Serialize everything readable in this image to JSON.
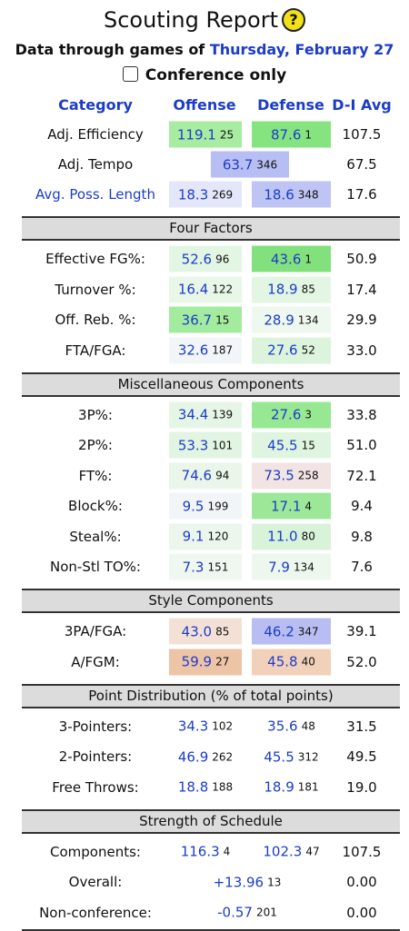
{
  "header": {
    "title": "Scouting Report",
    "help_icon": "?",
    "subtitle": "Data through games of",
    "date": "Thursday, February 27",
    "filter_label": "Conference only"
  },
  "table": {
    "columns": [
      "Category",
      "Offense",
      "Defense",
      "D-I Avg"
    ],
    "summary_rows": [
      {
        "label": "Adj. Efficiency",
        "offense": {
          "value": "119.1",
          "rank": "25",
          "color": "#a8eca2"
        },
        "defense": {
          "value": "87.6",
          "rank": "1",
          "color": "#86e480"
        },
        "average": "107.5"
      },
      {
        "label": "Adj. Tempo",
        "combined": {
          "value": "63.7",
          "rank": "346",
          "color": "#b7bef3"
        },
        "average": "67.5"
      },
      {
        "label": "Avg. Poss. Length",
        "link": true,
        "offense": {
          "value": "18.3",
          "rank": "269",
          "color": "#e4e7fa"
        },
        "defense": {
          "value": "18.6",
          "rank": "348",
          "color": "#bec4f4"
        },
        "average": "17.6"
      }
    ],
    "sections": [
      {
        "title": "Four Factors",
        "rows": [
          {
            "label": "Effective FG%:",
            "offense": {
              "value": "52.6",
              "rank": "96",
              "color": "#e3f6e3"
            },
            "defense": {
              "value": "43.6",
              "rank": "1",
              "color": "#82e17c"
            },
            "average": "50.9"
          },
          {
            "label": "Turnover %:",
            "offense": {
              "value": "16.4",
              "rank": "122",
              "color": "#e9f7e9"
            },
            "defense": {
              "value": "18.9",
              "rank": "85",
              "color": "#e3f6e3"
            },
            "average": "17.4"
          },
          {
            "label": "Off. Reb. %:",
            "offense": {
              "value": "36.7",
              "rank": "15",
              "color": "#a3eb9e"
            },
            "defense": {
              "value": "28.9",
              "rank": "134",
              "color": "#eef8ee"
            },
            "average": "29.9"
          },
          {
            "label": "FTA/FGA:",
            "offense": {
              "value": "32.6",
              "rank": "187",
              "color": "#f3f6f8"
            },
            "defense": {
              "value": "27.6",
              "rank": "52",
              "color": "#dcf4dc"
            },
            "average": "33.0"
          }
        ]
      },
      {
        "title": "Miscellaneous Components",
        "rows": [
          {
            "label": "3P%:",
            "offense": {
              "value": "34.4",
              "rank": "139",
              "color": "#e6f6e6"
            },
            "defense": {
              "value": "27.6",
              "rank": "3",
              "color": "#97e892"
            },
            "average": "33.8"
          },
          {
            "label": "2P%:",
            "offense": {
              "value": "53.3",
              "rank": "101",
              "color": "#e2f5e2"
            },
            "defense": {
              "value": "45.5",
              "rank": "15",
              "color": "#e0f5e0"
            },
            "average": "51.0"
          },
          {
            "label": "FT%:",
            "offense": {
              "value": "74.6",
              "rank": "94",
              "color": "#e9f6e9"
            },
            "defense": {
              "value": "73.5",
              "rank": "258",
              "color": "#f1e4e3"
            },
            "average": "72.1"
          },
          {
            "label": "Block%:",
            "offense": {
              "value": "9.5",
              "rank": "199",
              "color": "#f2f5f7"
            },
            "defense": {
              "value": "17.1",
              "rank": "4",
              "color": "#9de898"
            },
            "average": "9.4"
          },
          {
            "label": "Steal%:",
            "offense": {
              "value": "9.1",
              "rank": "120",
              "color": "#ecf6ed"
            },
            "defense": {
              "value": "11.0",
              "rank": "80",
              "color": "#d8f3d9"
            },
            "average": "9.8"
          },
          {
            "label": "Non-Stl TO%:",
            "offense": {
              "value": "7.3",
              "rank": "151",
              "color": "#f0f7f0"
            },
            "defense": {
              "value": "7.9",
              "rank": "134",
              "color": "#edf7ed"
            },
            "average": "7.6"
          }
        ]
      },
      {
        "title": "Style Components",
        "rows": [
          {
            "label": "3PA/FGA:",
            "offense": {
              "value": "43.0",
              "rank": "85",
              "color": "#f4e1d6"
            },
            "defense": {
              "value": "46.2",
              "rank": "347",
              "color": "#b8bdf2"
            },
            "average": "39.1"
          },
          {
            "label": "A/FGM:",
            "offense": {
              "value": "59.9",
              "rank": "27",
              "color": "#eec4a6"
            },
            "defense": {
              "value": "45.8",
              "rank": "40",
              "color": "#f2d1bb"
            },
            "average": "52.0"
          }
        ]
      },
      {
        "title": "Point Distribution (% of total points)",
        "rows": [
          {
            "label": "3-Pointers:",
            "offense": {
              "value": "34.3",
              "rank": "102"
            },
            "defense": {
              "value": "35.6",
              "rank": "48"
            },
            "average": "31.5"
          },
          {
            "label": "2-Pointers:",
            "offense": {
              "value": "46.9",
              "rank": "262"
            },
            "defense": {
              "value": "45.5",
              "rank": "312"
            },
            "average": "49.5"
          },
          {
            "label": "Free Throws:",
            "offense": {
              "value": "18.8",
              "rank": "188"
            },
            "defense": {
              "value": "18.9",
              "rank": "181"
            },
            "average": "19.0"
          }
        ]
      },
      {
        "title": "Strength of Schedule",
        "rows": [
          {
            "label": "Components:",
            "offense": {
              "value": "116.3",
              "rank": "4"
            },
            "defense": {
              "value": "102.3",
              "rank": "47"
            },
            "average": "107.5"
          },
          {
            "label": "Overall:",
            "combined": {
              "value": "+13.96",
              "rank": "13"
            },
            "average": "0.00"
          },
          {
            "label": "Non-conference:",
            "combined": {
              "value": "-0.57",
              "rank": "201"
            },
            "average": "0.00"
          }
        ]
      }
    ]
  }
}
